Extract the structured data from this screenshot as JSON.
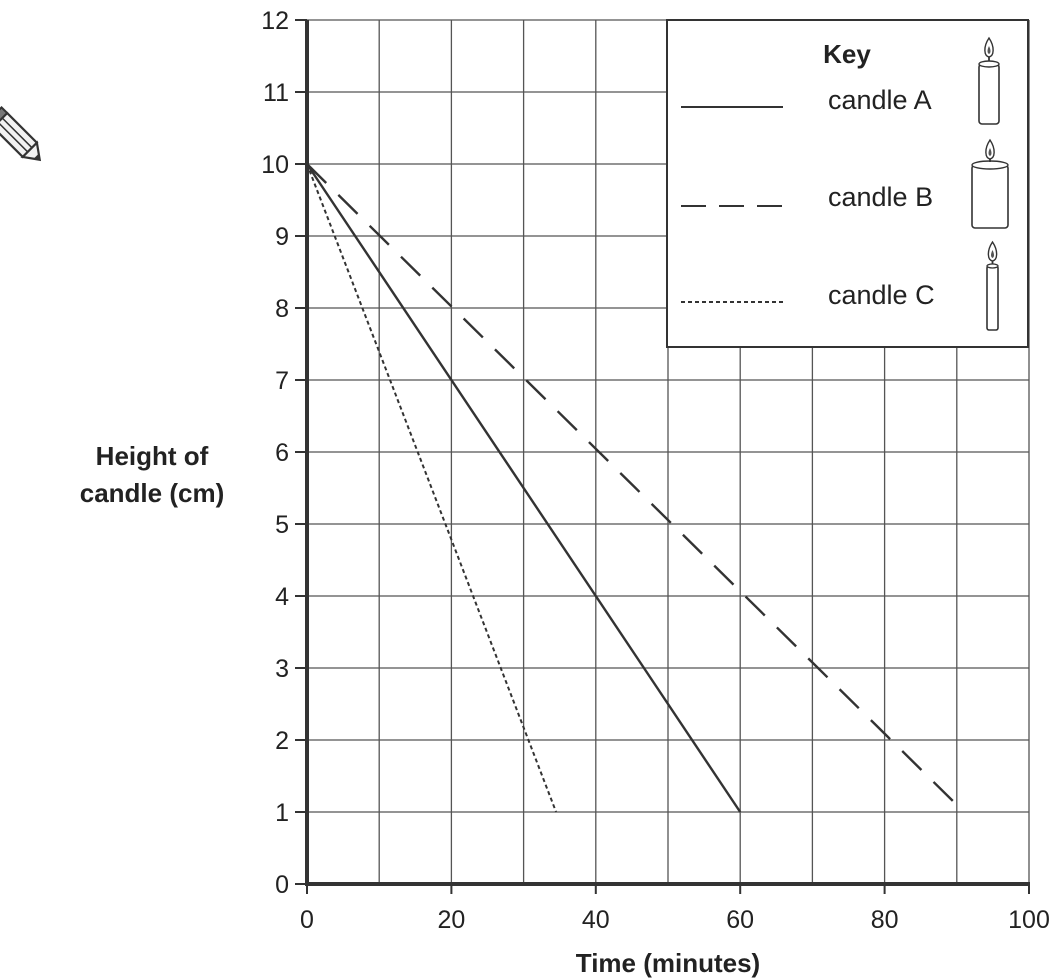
{
  "page": {
    "pencil_icon": "pencil-icon"
  },
  "chart_data": {
    "type": "line",
    "title": "",
    "xlabel": "Time (minutes)",
    "ylabel": [
      "Height of",
      "candle (cm)"
    ],
    "xlim": [
      0,
      100
    ],
    "ylim": [
      0,
      12
    ],
    "x_ticks": [
      0,
      20,
      40,
      60,
      80,
      100
    ],
    "y_ticks": [
      0,
      1,
      2,
      3,
      4,
      5,
      6,
      7,
      8,
      9,
      10,
      11,
      12
    ],
    "x_grid_step": 10,
    "y_grid_step": 1,
    "grid": true,
    "legend": {
      "title": "Key",
      "placement": "top-right"
    },
    "series": [
      {
        "name": "candle A",
        "style": "solid",
        "color": "#333333",
        "icon": "candle-medium-icon",
        "x": [
          0,
          60
        ],
        "y": [
          10,
          1
        ]
      },
      {
        "name": "candle B",
        "style": "dashed",
        "color": "#333333",
        "icon": "candle-wide-icon",
        "x": [
          0,
          91
        ],
        "y": [
          10,
          1
        ]
      },
      {
        "name": "candle C",
        "style": "dotted",
        "color": "#333333",
        "icon": "candle-thin-icon",
        "x": [
          0,
          34.5
        ],
        "y": [
          10,
          1
        ]
      }
    ]
  }
}
